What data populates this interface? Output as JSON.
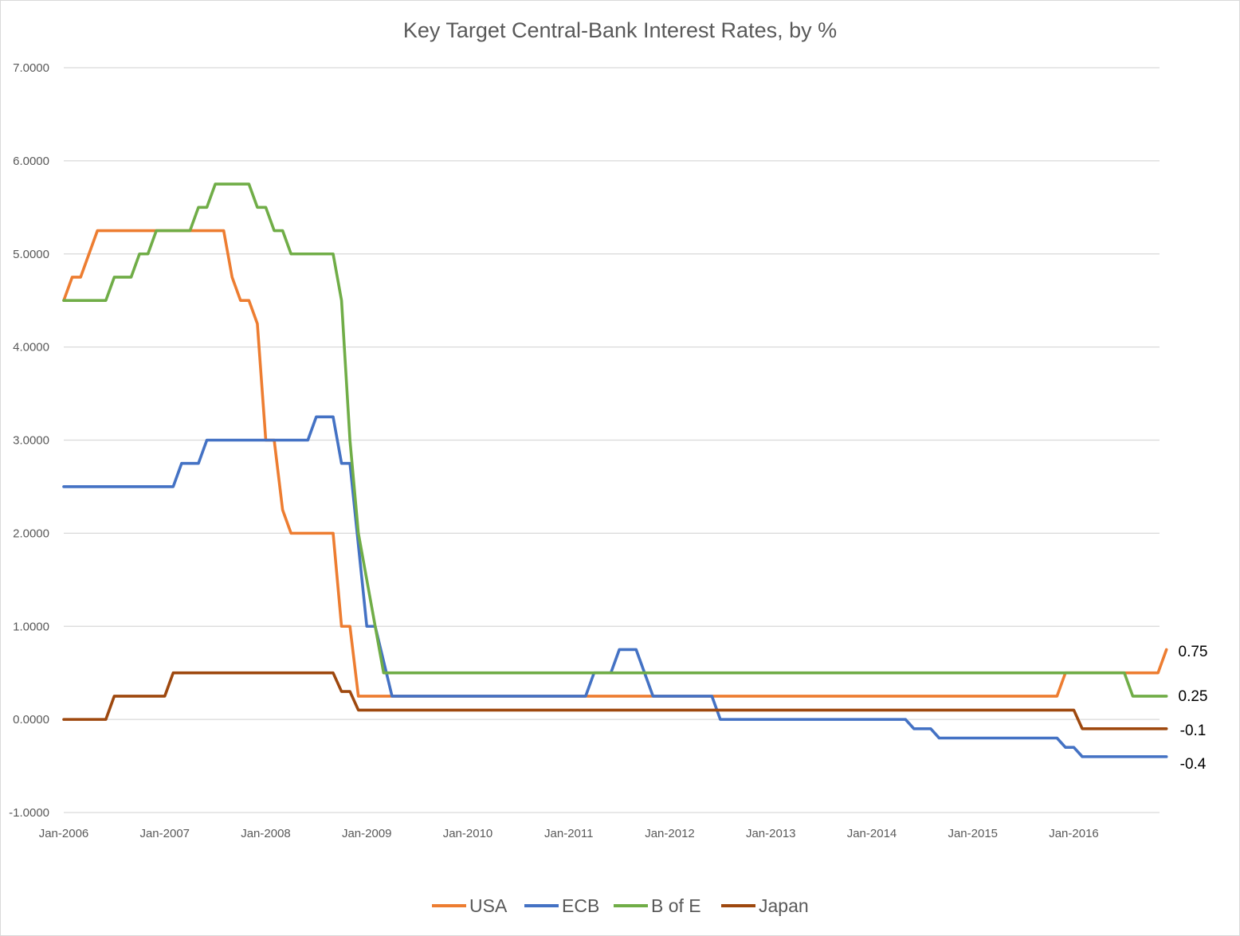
{
  "chart_data": {
    "type": "line",
    "title": "Key Target Central-Bank Interest Rates, by %",
    "ylim": [
      -1,
      7
    ],
    "yticks": [
      "7.0000",
      "6.0000",
      "5.0000",
      "4.0000",
      "3.0000",
      "2.0000",
      "1.0000",
      "0.0000",
      "-1.0000"
    ],
    "ytick_values": [
      7,
      6,
      5,
      4,
      3,
      2,
      1,
      0,
      -1
    ],
    "xlim": [
      "2006-01",
      "2016-12"
    ],
    "xticks": [
      "Jan-2006",
      "Jan-2007",
      "Jan-2008",
      "Jan-2009",
      "Jan-2010",
      "Jan-2011",
      "Jan-2012",
      "Jan-2013",
      "Jan-2014",
      "Jan-2015",
      "Jan-2016"
    ],
    "xtick_dates": [
      "2006-01",
      "2007-01",
      "2008-01",
      "2009-01",
      "2010-01",
      "2011-01",
      "2012-01",
      "2013-01",
      "2014-01",
      "2015-01",
      "2016-01"
    ],
    "grid": "horizontal",
    "legend_position": "bottom",
    "series": [
      {
        "name": "USA",
        "color": "#ED7D31",
        "points": [
          [
            "2006-01",
            4.5
          ],
          [
            "2006-02",
            4.75
          ],
          [
            "2006-03",
            4.75
          ],
          [
            "2006-04",
            5.0
          ],
          [
            "2006-05",
            5.25
          ],
          [
            "2006-06",
            5.25
          ],
          [
            "2007-08",
            5.25
          ],
          [
            "2007-09",
            4.75
          ],
          [
            "2007-10",
            4.5
          ],
          [
            "2007-11",
            4.5
          ],
          [
            "2007-12",
            4.25
          ],
          [
            "2008-01",
            3.0
          ],
          [
            "2008-02",
            3.0
          ],
          [
            "2008-03",
            2.25
          ],
          [
            "2008-04",
            2.0
          ],
          [
            "2008-09",
            2.0
          ],
          [
            "2008-10",
            1.0
          ],
          [
            "2008-11",
            1.0
          ],
          [
            "2008-12",
            0.25
          ],
          [
            "2015-11",
            0.25
          ],
          [
            "2015-12",
            0.5
          ],
          [
            "2016-11",
            0.5
          ],
          [
            "2016-12",
            0.75
          ]
        ]
      },
      {
        "name": "ECB",
        "color": "#4472C4",
        "points": [
          [
            "2006-01",
            2.5
          ],
          [
            "2007-02",
            2.5
          ],
          [
            "2007-03",
            2.75
          ],
          [
            "2007-05",
            2.75
          ],
          [
            "2007-06",
            3.0
          ],
          [
            "2008-06",
            3.0
          ],
          [
            "2008-07",
            3.25
          ],
          [
            "2008-09",
            3.25
          ],
          [
            "2008-10",
            2.75
          ],
          [
            "2008-11",
            2.75
          ],
          [
            "2009-01",
            1.0
          ],
          [
            "2009-02",
            1.0
          ],
          [
            "2009-04",
            0.25
          ],
          [
            "2011-03",
            0.25
          ],
          [
            "2011-04",
            0.5
          ],
          [
            "2011-06",
            0.5
          ],
          [
            "2011-07",
            0.75
          ],
          [
            "2011-09",
            0.75
          ],
          [
            "2011-11",
            0.25
          ],
          [
            "2012-06",
            0.25
          ],
          [
            "2012-07",
            0.0
          ],
          [
            "2014-05",
            0.0
          ],
          [
            "2014-06",
            -0.1
          ],
          [
            "2014-08",
            -0.1
          ],
          [
            "2014-09",
            -0.2
          ],
          [
            "2015-11",
            -0.2
          ],
          [
            "2015-12",
            -0.3
          ],
          [
            "2016-01",
            -0.3
          ],
          [
            "2016-02",
            -0.4
          ],
          [
            "2016-12",
            -0.4
          ]
        ]
      },
      {
        "name": "B of E",
        "color": "#70AD47",
        "points": [
          [
            "2006-01",
            4.5
          ],
          [
            "2006-06",
            4.5
          ],
          [
            "2006-07",
            4.75
          ],
          [
            "2006-09",
            4.75
          ],
          [
            "2006-10",
            5.0
          ],
          [
            "2006-11",
            5.0
          ],
          [
            "2006-12",
            5.25
          ],
          [
            "2007-04",
            5.25
          ],
          [
            "2007-05",
            5.5
          ],
          [
            "2007-06",
            5.5
          ],
          [
            "2007-07",
            5.75
          ],
          [
            "2007-11",
            5.75
          ],
          [
            "2007-12",
            5.5
          ],
          [
            "2008-01",
            5.5
          ],
          [
            "2008-02",
            5.25
          ],
          [
            "2008-03",
            5.25
          ],
          [
            "2008-04",
            5.0
          ],
          [
            "2008-09",
            5.0
          ],
          [
            "2008-10",
            4.5
          ],
          [
            "2008-11",
            3.0
          ],
          [
            "2008-12",
            2.0
          ],
          [
            "2009-01",
            1.5
          ],
          [
            "2009-02",
            1.0
          ],
          [
            "2009-03",
            0.5
          ],
          [
            "2016-07",
            0.5
          ],
          [
            "2016-08",
            0.25
          ],
          [
            "2016-12",
            0.25
          ]
        ]
      },
      {
        "name": "Japan",
        "color": "#9E480E",
        "points": [
          [
            "2006-01",
            0.0
          ],
          [
            "2006-06",
            0.0
          ],
          [
            "2006-07",
            0.25
          ],
          [
            "2007-01",
            0.25
          ],
          [
            "2007-02",
            0.5
          ],
          [
            "2008-09",
            0.5
          ],
          [
            "2008-10",
            0.3
          ],
          [
            "2008-11",
            0.3
          ],
          [
            "2008-12",
            0.1
          ],
          [
            "2016-01",
            0.1
          ],
          [
            "2016-02",
            -0.1
          ],
          [
            "2016-12",
            -0.1
          ]
        ]
      }
    ],
    "end_labels": [
      {
        "text": "0.75",
        "series": "USA",
        "value": 0.75
      },
      {
        "text": "0.25",
        "series": "B of E",
        "value": 0.25
      },
      {
        "text": "-0.1",
        "series": "Japan",
        "value": -0.1
      },
      {
        "text": "-0.4",
        "series": "ECB",
        "value": -0.4
      }
    ]
  }
}
